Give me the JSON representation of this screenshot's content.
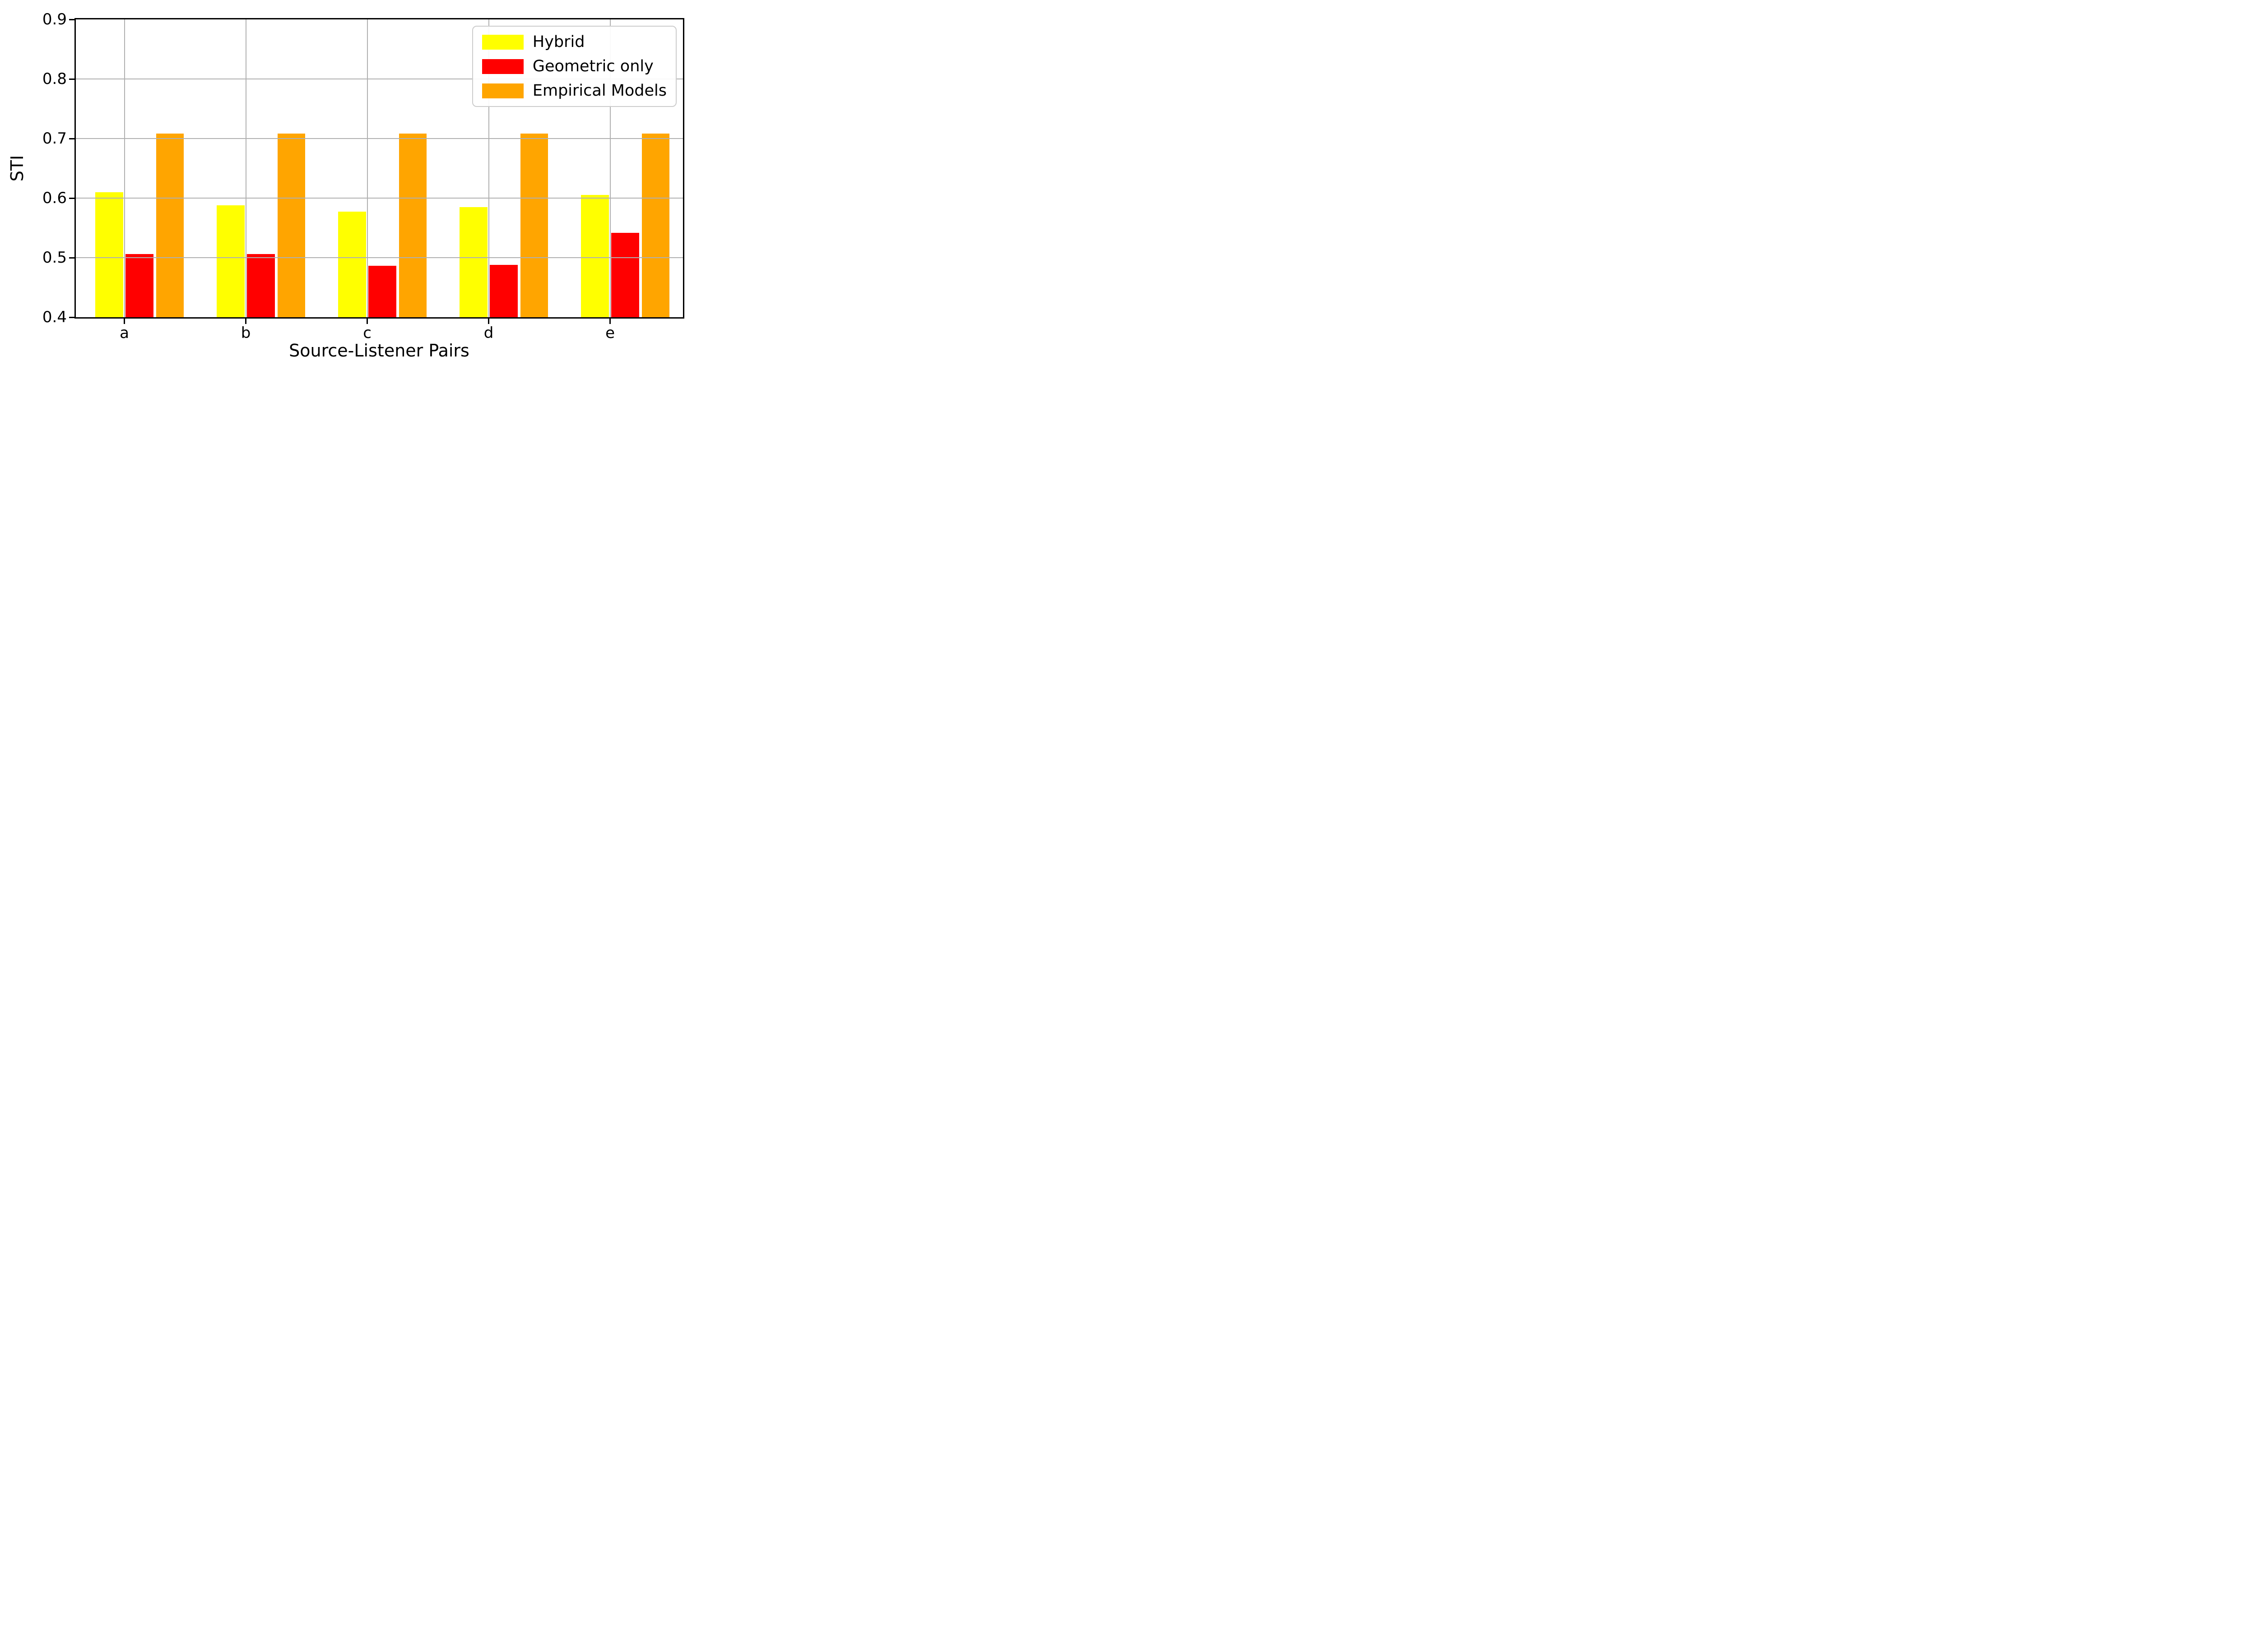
{
  "chart_data": {
    "type": "bar",
    "title": "",
    "xlabel": "Source-Listener Pairs",
    "ylabel": "STI",
    "categories": [
      "a",
      "b",
      "c",
      "d",
      "e"
    ],
    "series": [
      {
        "name": "Hybrid",
        "color": "#ffff00",
        "values": [
          0.61,
          0.588,
          0.577,
          0.585,
          0.605
        ]
      },
      {
        "name": "Geometric only",
        "color": "#ff0000",
        "values": [
          0.506,
          0.506,
          0.486,
          0.488,
          0.542
        ]
      },
      {
        "name": "Empirical Models",
        "color": "#ffa500",
        "values": [
          0.708,
          0.708,
          0.708,
          0.708,
          0.708
        ]
      }
    ],
    "ylim": [
      0.4,
      0.9
    ],
    "yticks": [
      0.4,
      0.5,
      0.6,
      0.7,
      0.8,
      0.9
    ],
    "ytick_labels": [
      "0.4",
      "0.5",
      "0.6",
      "0.7",
      "0.8",
      "0.9"
    ],
    "grid": true,
    "grid_above_bars": true,
    "legend_position": "upper right"
  },
  "colors": {
    "grid": "#b0b0b0",
    "axis": "#000000",
    "background": "#ffffff",
    "legend_border": "#cccccc"
  }
}
